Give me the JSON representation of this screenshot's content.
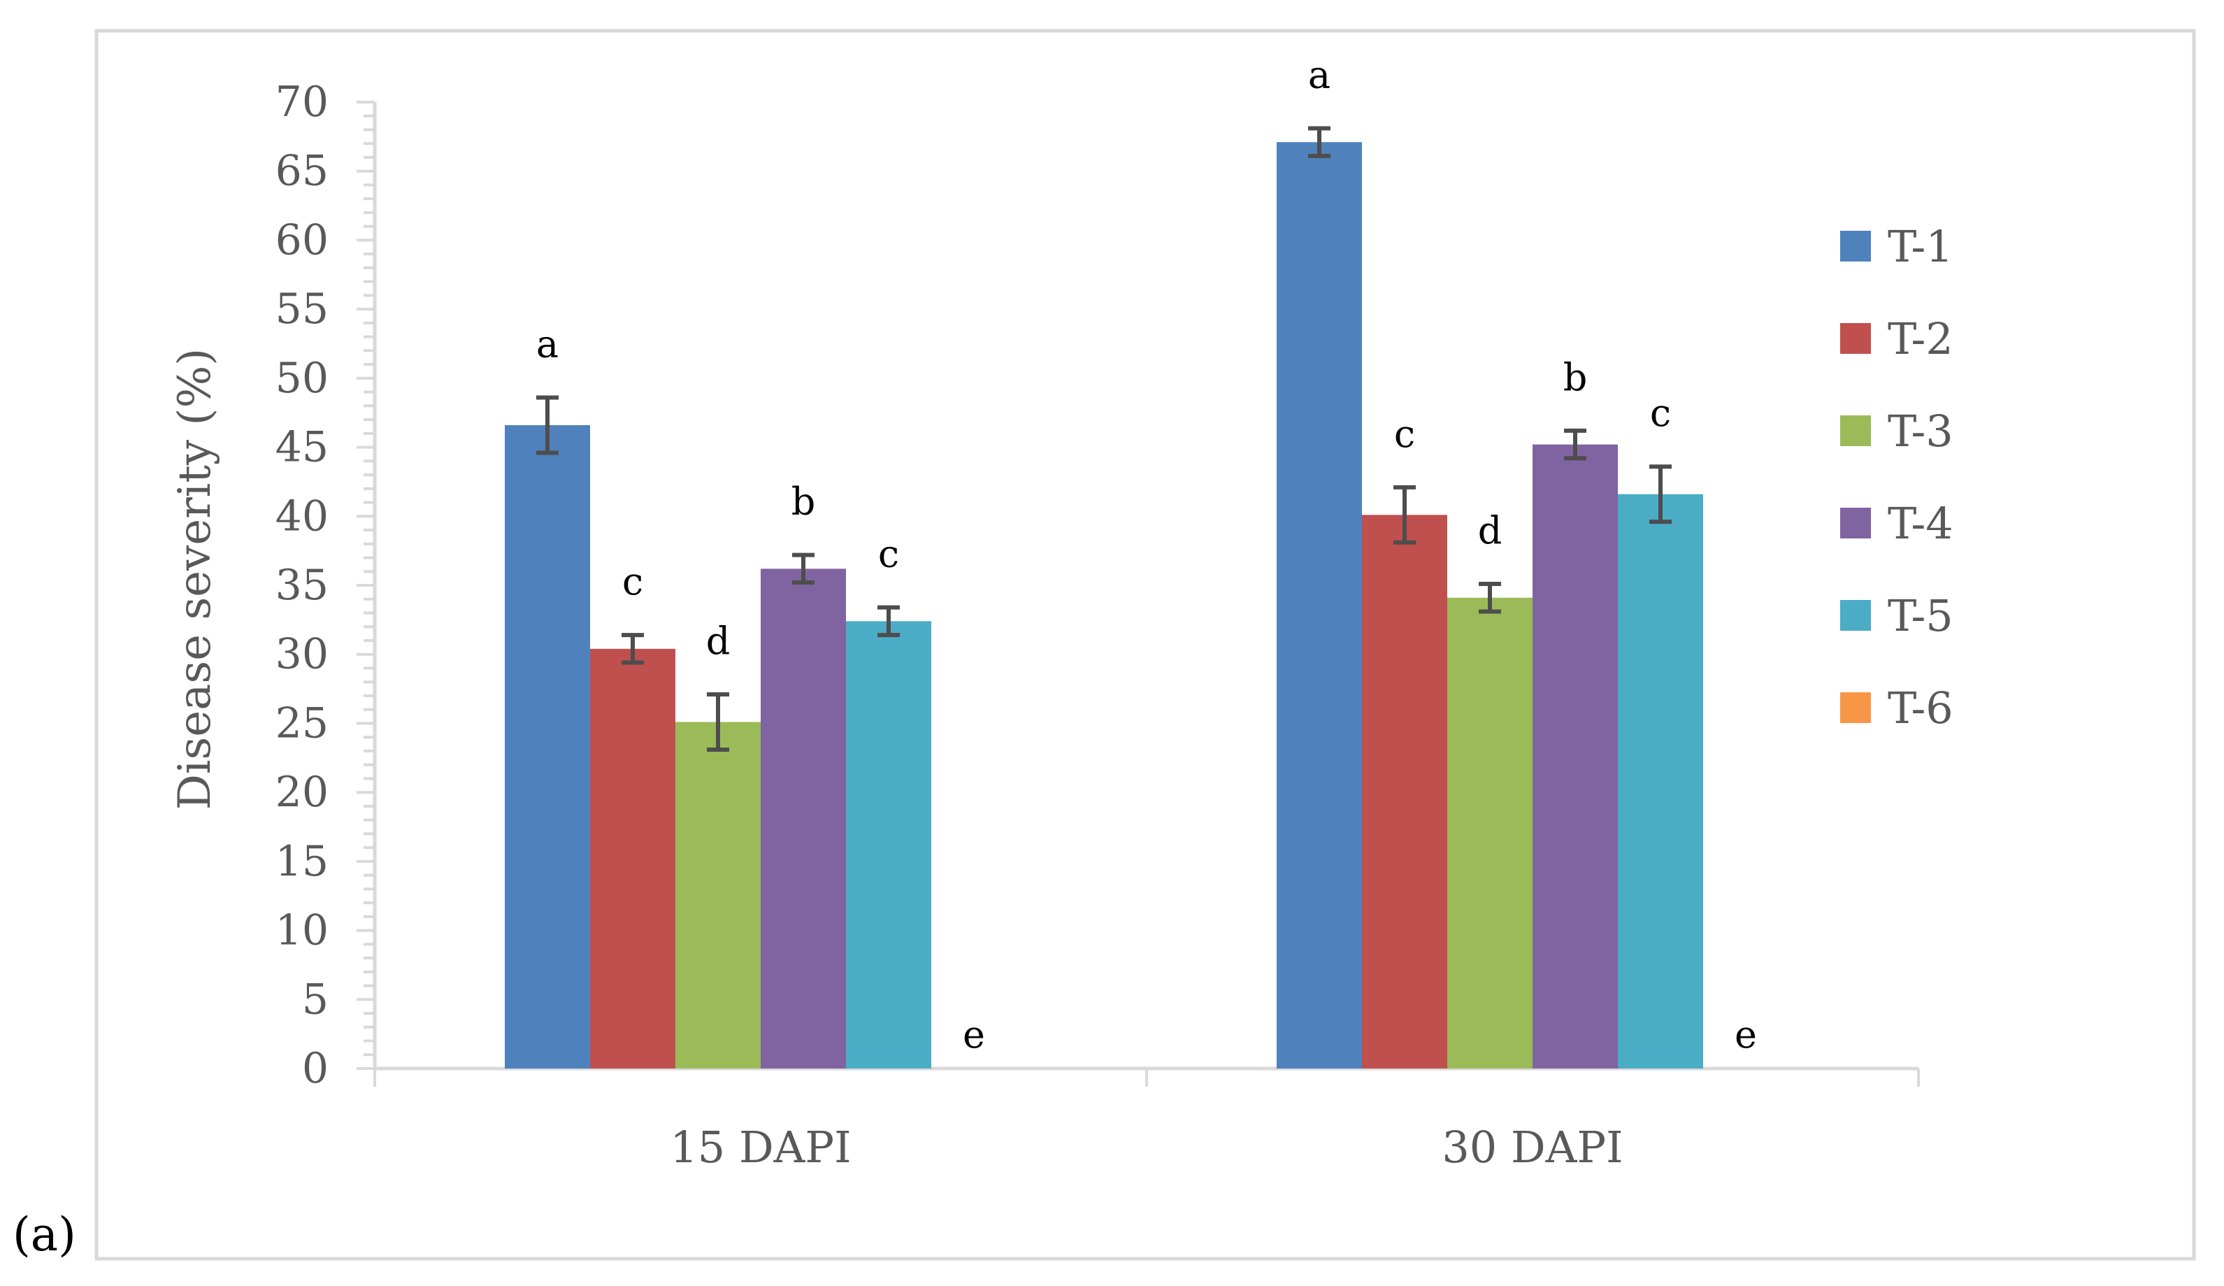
{
  "panel_label": "(a)",
  "chart_data": {
    "type": "bar",
    "title": "",
    "xlabel": "",
    "ylabel": "Disease severity (%)",
    "ylim": [
      0,
      70
    ],
    "y_ticks": [
      "0",
      "5",
      "10",
      "15",
      "20",
      "25",
      "30",
      "35",
      "40",
      "45",
      "50",
      "55",
      "60",
      "65",
      "70"
    ],
    "grid": false,
    "legend_position": "right",
    "categories": [
      "15 DAPI",
      "30 DAPI"
    ],
    "series": [
      {
        "name": "T-1",
        "color": "#4F81BD",
        "values": [
          46.6,
          67.1
        ],
        "errors": [
          2.0,
          1.0
        ],
        "letters": [
          "a",
          "a"
        ]
      },
      {
        "name": "T-2",
        "color": "#C0504D",
        "values": [
          30.4,
          40.1
        ],
        "errors": [
          1.0,
          2.0
        ],
        "letters": [
          "c",
          "c"
        ]
      },
      {
        "name": "T-3",
        "color": "#9BBB59",
        "values": [
          25.1,
          34.1
        ],
        "errors": [
          2.0,
          1.0
        ],
        "letters": [
          "d",
          "d"
        ]
      },
      {
        "name": "T-4",
        "color": "#8064A2",
        "values": [
          36.2,
          45.2
        ],
        "errors": [
          1.0,
          1.0
        ],
        "letters": [
          "b",
          "b"
        ]
      },
      {
        "name": "T-5",
        "color": "#4BACC6",
        "values": [
          32.4,
          41.6
        ],
        "errors": [
          1.0,
          2.0
        ],
        "letters": [
          "c",
          "c"
        ]
      },
      {
        "name": "T-6",
        "color": "#F79646",
        "values": [
          0,
          0
        ],
        "errors": [
          0,
          0
        ],
        "letters": [
          "e",
          "e"
        ]
      }
    ]
  }
}
